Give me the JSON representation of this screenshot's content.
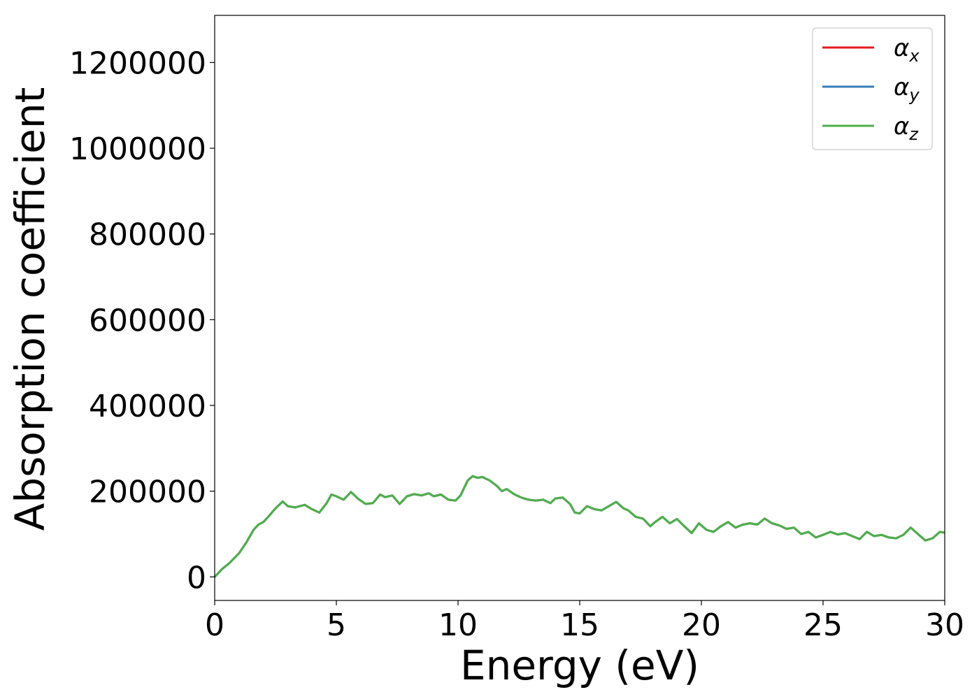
{
  "chart_data": {
    "type": "line",
    "xlabel": "Energy (eV)",
    "ylabel": "Absorption coefficient",
    "xlim": [
      0,
      30
    ],
    "ylim": [
      -55000,
      1310000
    ],
    "xticks": [
      0,
      5,
      10,
      15,
      20,
      25,
      30
    ],
    "xtick_labels": [
      "0",
      "5",
      "10",
      "15",
      "20",
      "25",
      "30"
    ],
    "yticks": [
      0,
      200000,
      400000,
      600000,
      800000,
      1000000,
      1200000
    ],
    "ytick_labels": [
      "0",
      "200000",
      "400000",
      "600000",
      "800000",
      "1000000",
      "1200000"
    ],
    "grid": false,
    "legend_position": "top-right",
    "legend": [
      {
        "symbol": "α",
        "subscript": "x",
        "color": "#e41a1c"
      },
      {
        "symbol": "α",
        "subscript": "y",
        "color": "#377eb8"
      },
      {
        "symbol": "α",
        "subscript": "z",
        "color": "#4daf4a"
      }
    ],
    "x": [
      0,
      0.3,
      0.6,
      1.0,
      1.3,
      1.6,
      1.8,
      2.0,
      2.2,
      2.5,
      2.8,
      3.0,
      3.3,
      3.7,
      4.0,
      4.3,
      4.6,
      4.8,
      5.0,
      5.3,
      5.6,
      5.9,
      6.2,
      6.5,
      6.8,
      7.0,
      7.3,
      7.6,
      7.9,
      8.2,
      8.5,
      8.8,
      9.0,
      9.3,
      9.6,
      9.9,
      10.1,
      10.4,
      10.6,
      10.8,
      11.0,
      11.3,
      11.6,
      11.8,
      12.0,
      12.3,
      12.6,
      12.9,
      13.2,
      13.5,
      13.8,
      14.0,
      14.3,
      14.6,
      14.8,
      15.0,
      15.3,
      15.6,
      15.9,
      16.2,
      16.5,
      16.8,
      17.0,
      17.3,
      17.6,
      17.9,
      18.1,
      18.4,
      18.7,
      19.0,
      19.3,
      19.6,
      19.9,
      20.2,
      20.5,
      20.8,
      21.1,
      21.4,
      21.7,
      22.0,
      22.3,
      22.6,
      22.9,
      23.2,
      23.5,
      23.8,
      24.1,
      24.4,
      24.7,
      25.0,
      25.3,
      25.6,
      25.9,
      26.2,
      26.5,
      26.8,
      27.1,
      27.4,
      27.7,
      28.0,
      28.3,
      28.6,
      28.9,
      29.2,
      29.5,
      29.8,
      30.0
    ],
    "series": [
      {
        "color": "#e41a1c",
        "values": [
          0,
          18000,
          32000,
          55000,
          80000,
          110000,
          122000,
          128000,
          140000,
          160000,
          176000,
          165000,
          162000,
          168000,
          158000,
          150000,
          172000,
          192000,
          188000,
          180000,
          198000,
          182000,
          170000,
          172000,
          192000,
          186000,
          190000,
          170000,
          188000,
          193000,
          190000,
          195000,
          188000,
          192000,
          180000,
          178000,
          190000,
          225000,
          235000,
          231000,
          233000,
          225000,
          212000,
          200000,
          205000,
          193000,
          185000,
          180000,
          178000,
          180000,
          172000,
          183000,
          185000,
          170000,
          150000,
          148000,
          165000,
          158000,
          155000,
          165000,
          175000,
          160000,
          155000,
          140000,
          136000,
          118000,
          128000,
          140000,
          125000,
          135000,
          118000,
          102000,
          125000,
          110000,
          105000,
          118000,
          128000,
          115000,
          122000,
          125000,
          122000,
          136000,
          125000,
          120000,
          112000,
          115000,
          100000,
          105000,
          92000,
          98000,
          105000,
          99000,
          102000,
          95000,
          88000,
          105000,
          95000,
          98000,
          92000,
          90000,
          98000,
          115000,
          100000,
          85000,
          90000,
          105000,
          103000
        ]
      },
      {
        "color": "#377eb8",
        "values": [
          0,
          18000,
          32000,
          55000,
          80000,
          110000,
          122000,
          128000,
          140000,
          160000,
          176000,
          165000,
          162000,
          168000,
          158000,
          150000,
          172000,
          192000,
          188000,
          180000,
          198000,
          182000,
          170000,
          172000,
          192000,
          186000,
          190000,
          170000,
          188000,
          193000,
          190000,
          195000,
          188000,
          192000,
          180000,
          178000,
          190000,
          225000,
          235000,
          231000,
          233000,
          225000,
          212000,
          200000,
          205000,
          193000,
          185000,
          180000,
          178000,
          180000,
          172000,
          183000,
          185000,
          170000,
          150000,
          148000,
          165000,
          158000,
          155000,
          165000,
          175000,
          160000,
          155000,
          140000,
          136000,
          118000,
          128000,
          140000,
          125000,
          135000,
          118000,
          102000,
          125000,
          110000,
          105000,
          118000,
          128000,
          115000,
          122000,
          125000,
          122000,
          136000,
          125000,
          120000,
          112000,
          115000,
          100000,
          105000,
          92000,
          98000,
          105000,
          99000,
          102000,
          95000,
          88000,
          105000,
          95000,
          98000,
          92000,
          90000,
          98000,
          115000,
          100000,
          85000,
          90000,
          105000,
          103000
        ]
      },
      {
        "color": "#4daf4a",
        "values": [
          0,
          18000,
          32000,
          55000,
          80000,
          110000,
          122000,
          128000,
          140000,
          160000,
          176000,
          165000,
          162000,
          168000,
          158000,
          150000,
          172000,
          192000,
          188000,
          180000,
          198000,
          182000,
          170000,
          172000,
          192000,
          186000,
          190000,
          170000,
          188000,
          193000,
          190000,
          195000,
          188000,
          192000,
          180000,
          178000,
          190000,
          225000,
          235000,
          231000,
          233000,
          225000,
          212000,
          200000,
          205000,
          193000,
          185000,
          180000,
          178000,
          180000,
          172000,
          183000,
          185000,
          170000,
          150000,
          148000,
          165000,
          158000,
          155000,
          165000,
          175000,
          160000,
          155000,
          140000,
          136000,
          118000,
          128000,
          140000,
          125000,
          135000,
          118000,
          102000,
          125000,
          110000,
          105000,
          118000,
          128000,
          115000,
          122000,
          125000,
          122000,
          136000,
          125000,
          120000,
          112000,
          115000,
          100000,
          105000,
          92000,
          98000,
          105000,
          99000,
          102000,
          95000,
          88000,
          105000,
          95000,
          98000,
          92000,
          90000,
          98000,
          115000,
          100000,
          85000,
          90000,
          105000,
          103000
        ]
      }
    ]
  }
}
